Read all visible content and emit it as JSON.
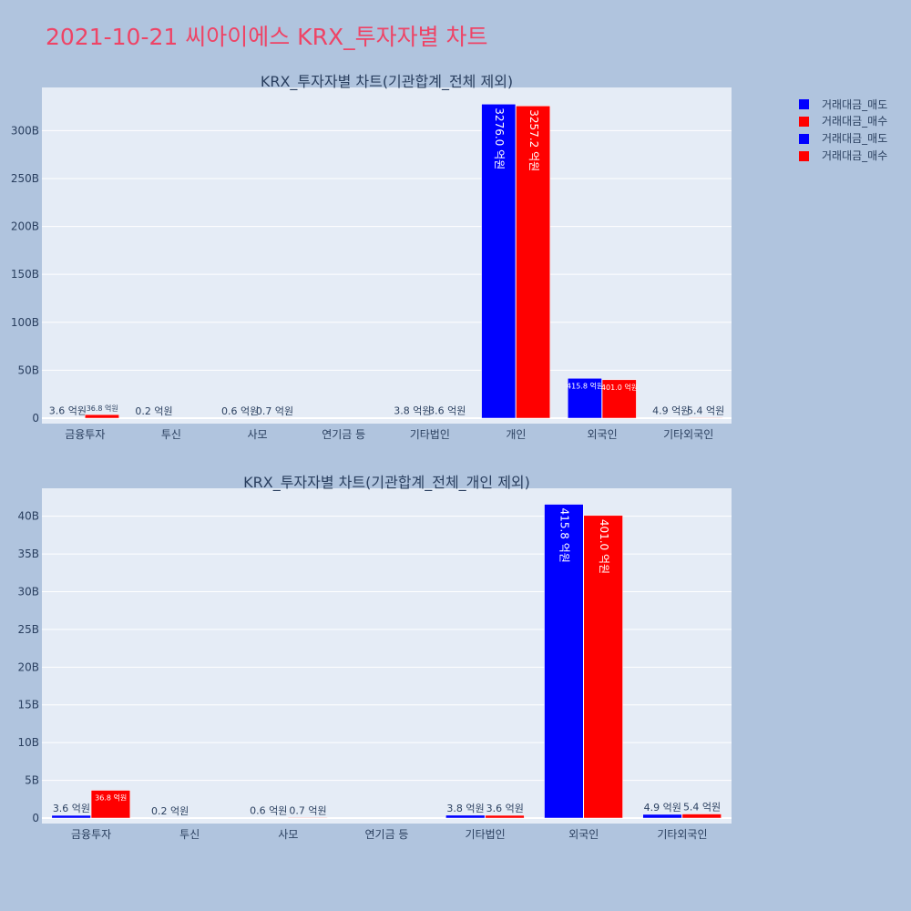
{
  "title": "2021-10-21 씨아이에스 KRX_투자자별 차트",
  "colors": {
    "sell": "#0000ff",
    "buy": "#ff0000",
    "plot_bg": "#e5ecf6",
    "page_bg": "#b0c4de"
  },
  "legend": [
    "거래대금_매도",
    "거래대금_매수",
    "거래대금_매도",
    "거래대금_매수"
  ],
  "chart_data": [
    {
      "type": "bar",
      "title": "KRX_투자자별 차트(기관합계_전체 제외)",
      "categories": [
        "금융투자",
        "투신",
        "사모",
        "연기금 등",
        "기타법인",
        "개인",
        "외국인",
        "기타외국인"
      ],
      "series": [
        {
          "name": "거래대금_매도",
          "values": [
            0.36,
            0.02,
            0.06,
            0,
            0.38,
            327.6,
            41.58,
            0.49
          ],
          "labels": [
            "3.6 억원",
            "0.2 억원",
            "0.6 억원",
            "",
            "3.8 억원",
            "3276.0 억원",
            "415.8 억원",
            "4.9 억원"
          ]
        },
        {
          "name": "거래대금_매수",
          "values": [
            3.68,
            0,
            0.07,
            0,
            0.36,
            325.72,
            40.1,
            0.54
          ],
          "labels": [
            "36.8 억원",
            "",
            "0.7 억원",
            "",
            "3.6 억원",
            "3257.2 억원",
            "401.0 억원",
            "5.4 억원"
          ]
        }
      ],
      "y_ticks": [
        "0",
        "50B",
        "100B",
        "150B",
        "200B",
        "250B",
        "300B"
      ],
      "ylim": [
        0,
        345
      ],
      "grid": true
    },
    {
      "type": "bar",
      "title": "KRX_투자자별 차트(기관합계_전체_개인 제외)",
      "categories": [
        "금융투자",
        "투신",
        "사모",
        "연기금 등",
        "기타법인",
        "외국인",
        "기타외국인"
      ],
      "series": [
        {
          "name": "거래대금_매도",
          "values": [
            0.36,
            0.02,
            0.06,
            0,
            0.38,
            41.58,
            0.49
          ],
          "labels": [
            "3.6 억원",
            "0.2 억원",
            "0.6 억원",
            "",
            "3.8 억원",
            "415.8 억원",
            "4.9 억원"
          ]
        },
        {
          "name": "거래대금_매수",
          "values": [
            3.68,
            0,
            0.07,
            0,
            0.36,
            40.1,
            0.54
          ],
          "labels": [
            "36.8 억원",
            "",
            "0.7 억원",
            "",
            "3.6 억원",
            "401.0 억원",
            "5.4 억원"
          ]
        }
      ],
      "y_ticks": [
        "0",
        "5B",
        "10B",
        "15B",
        "20B",
        "25B",
        "30B",
        "35B",
        "40B"
      ],
      "ylim": [
        0,
        43.7
      ],
      "grid": true
    }
  ]
}
